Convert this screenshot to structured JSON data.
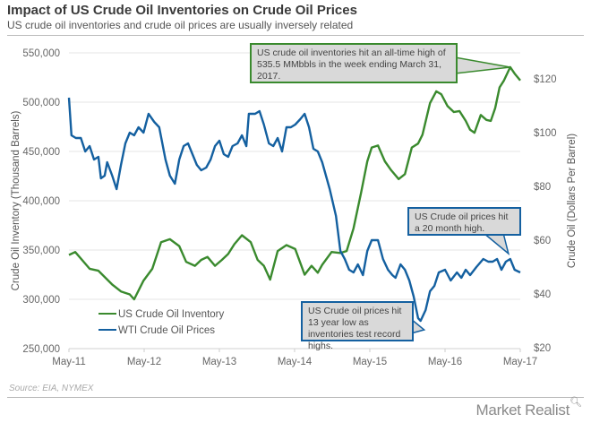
{
  "header": {
    "title": "Impact of US Crude Oil Inventories on Crude Oil Prices",
    "subtitle": "US crude oil inventories and crude oil prices are usually inversely related"
  },
  "footer": {
    "source": "Source: EIA, NYMEX",
    "brand": "Market Realist",
    "brand_icon": "magnifier-icon"
  },
  "colors": {
    "inventory": "#3a8a2e",
    "price": "#1460a0",
    "callout_bg": "#d9d9d9",
    "grid": "#e6e6e6"
  },
  "chart_data": {
    "type": "line",
    "title": "Impact of US Crude Oil Inventories on Crude Oil Prices",
    "subtitle": "US crude oil inventories and crude oil prices are usually inversely related",
    "xlabel": "",
    "x_ticks": [
      "May-11",
      "May-12",
      "May-13",
      "May-14",
      "May-15",
      "May-16",
      "May-17"
    ],
    "x_range_months": [
      0,
      72
    ],
    "y_left": {
      "label": "Crude Oil Inventory (Thousand  Barrels)",
      "range": [
        250000,
        550000
      ],
      "ticks": [
        "250,000",
        "300,000",
        "350,000",
        "400,000",
        "450,000",
        "500,000",
        "550,000"
      ]
    },
    "y_right": {
      "label": "Crude Oil (Dollars Per Barrel)",
      "range": [
        20,
        120
      ],
      "ticks": [
        "$20",
        "$40",
        "$60",
        "$80",
        "$100",
        "$120"
      ]
    },
    "grid": true,
    "legend": {
      "placement": "bottom-left",
      "entries": [
        "US Crude Oil Inventory",
        "WTI Crude Oil Prices"
      ]
    },
    "series": [
      {
        "name": "US Crude Oil Inventory",
        "axis": "left",
        "color": "#3a8a2e",
        "points": [
          [
            0,
            345000
          ],
          [
            1,
            348000
          ],
          [
            3.3,
            331000
          ],
          [
            4.7,
            329000
          ],
          [
            6.9,
            315000
          ],
          [
            8.3,
            308000
          ],
          [
            9.7,
            305000
          ],
          [
            10.4,
            300000
          ],
          [
            11.9,
            319000
          ],
          [
            13.3,
            331000
          ],
          [
            14.7,
            358000
          ],
          [
            16.1,
            361000
          ],
          [
            17.6,
            354000
          ],
          [
            18.7,
            338000
          ],
          [
            20.1,
            334000
          ],
          [
            21.1,
            340000
          ],
          [
            22.1,
            343000
          ],
          [
            23.3,
            334000
          ],
          [
            24.4,
            340000
          ],
          [
            25.4,
            346000
          ],
          [
            26.4,
            356000
          ],
          [
            27.6,
            365000
          ],
          [
            29,
            358000
          ],
          [
            30.1,
            340000
          ],
          [
            31.1,
            334000
          ],
          [
            32.1,
            320000
          ],
          [
            33.3,
            349000
          ],
          [
            34.7,
            355000
          ],
          [
            36.1,
            351000
          ],
          [
            37.6,
            325000
          ],
          [
            38.7,
            334000
          ],
          [
            39.7,
            327000
          ],
          [
            40.4,
            335000
          ],
          [
            41.9,
            348000
          ],
          [
            43.3,
            347000
          ],
          [
            44.3,
            349000
          ],
          [
            45.4,
            372000
          ],
          [
            46.6,
            408000
          ],
          [
            47.6,
            440000
          ],
          [
            48.3,
            454000
          ],
          [
            49.3,
            456000
          ],
          [
            50.4,
            440000
          ],
          [
            51.4,
            431000
          ],
          [
            52.6,
            422000
          ],
          [
            53.6,
            427000
          ],
          [
            54.7,
            454000
          ],
          [
            55.7,
            458000
          ],
          [
            56.4,
            467000
          ],
          [
            57.6,
            499000
          ],
          [
            58.6,
            511000
          ],
          [
            59.4,
            508000
          ],
          [
            60.4,
            496000
          ],
          [
            61.4,
            490000
          ],
          [
            62.3,
            491000
          ],
          [
            63.3,
            481000
          ],
          [
            64,
            472000
          ],
          [
            64.7,
            469000
          ],
          [
            65.7,
            487000
          ],
          [
            66.6,
            482000
          ],
          [
            67.3,
            481000
          ],
          [
            68,
            494000
          ],
          [
            68.7,
            515000
          ],
          [
            69.4,
            522000
          ],
          [
            70.4,
            535500
          ],
          [
            71.1,
            529000
          ],
          [
            72,
            522000
          ]
        ]
      },
      {
        "name": "WTI Crude Oil Prices",
        "axis": "right",
        "color": "#1460a0",
        "points": [
          [
            0,
            113
          ],
          [
            0.4,
            99
          ],
          [
            1.1,
            98
          ],
          [
            1.9,
            98
          ],
          [
            2.6,
            93
          ],
          [
            3.3,
            95
          ],
          [
            4,
            90
          ],
          [
            4.7,
            91
          ],
          [
            5.1,
            83
          ],
          [
            5.7,
            84
          ],
          [
            6.1,
            89
          ],
          [
            6.9,
            84
          ],
          [
            7.6,
            79
          ],
          [
            8.3,
            88
          ],
          [
            9,
            96
          ],
          [
            9.7,
            100
          ],
          [
            10.4,
            99
          ],
          [
            11.1,
            102
          ],
          [
            11.9,
            100
          ],
          [
            12.7,
            107
          ],
          [
            13.6,
            104
          ],
          [
            14.4,
            102
          ],
          [
            15.4,
            90
          ],
          [
            16.1,
            84
          ],
          [
            16.9,
            81
          ],
          [
            17.6,
            90
          ],
          [
            18.3,
            95
          ],
          [
            19,
            96
          ],
          [
            19.7,
            92
          ],
          [
            20.4,
            88
          ],
          [
            21.1,
            86
          ],
          [
            21.9,
            87
          ],
          [
            22.6,
            90
          ],
          [
            23.3,
            95
          ],
          [
            24,
            97
          ],
          [
            24.7,
            92
          ],
          [
            25.4,
            91
          ],
          [
            26.1,
            95
          ],
          [
            26.9,
            96
          ],
          [
            27.6,
            99
          ],
          [
            28.3,
            95
          ],
          [
            28.7,
            107
          ],
          [
            29.7,
            107
          ],
          [
            30.4,
            108
          ],
          [
            31.1,
            103
          ],
          [
            31.9,
            96
          ],
          [
            32.6,
            95
          ],
          [
            33.3,
            98
          ],
          [
            34,
            93
          ],
          [
            34.7,
            102
          ],
          [
            35.4,
            102
          ],
          [
            36.1,
            103
          ],
          [
            36.9,
            105
          ],
          [
            37.6,
            107
          ],
          [
            38.3,
            102
          ],
          [
            39,
            94
          ],
          [
            39.7,
            93
          ],
          [
            40.4,
            89
          ],
          [
            41.6,
            79
          ],
          [
            42.6,
            69
          ],
          [
            43.3,
            56
          ],
          [
            44,
            53
          ],
          [
            44.7,
            49
          ],
          [
            45.4,
            48
          ],
          [
            46.1,
            51
          ],
          [
            46.9,
            47
          ],
          [
            47.6,
            56
          ],
          [
            48.3,
            60
          ],
          [
            49.3,
            60
          ],
          [
            50.1,
            53
          ],
          [
            50.9,
            49
          ],
          [
            51.6,
            47
          ],
          [
            52.1,
            46
          ],
          [
            52.9,
            51
          ],
          [
            53.6,
            49
          ],
          [
            54.3,
            45
          ],
          [
            55,
            39
          ],
          [
            55.7,
            31
          ],
          [
            56.1,
            30
          ],
          [
            56.9,
            34
          ],
          [
            57.6,
            41
          ],
          [
            58.3,
            43
          ],
          [
            59,
            48
          ],
          [
            60,
            49
          ],
          [
            60.9,
            45
          ],
          [
            61.9,
            48
          ],
          [
            62.6,
            46
          ],
          [
            63.3,
            49
          ],
          [
            64,
            47
          ],
          [
            65,
            50
          ],
          [
            66.1,
            53
          ],
          [
            66.9,
            52
          ],
          [
            67.6,
            52
          ],
          [
            68.3,
            53
          ],
          [
            69,
            49
          ],
          [
            69.7,
            52
          ],
          [
            70.4,
            53
          ],
          [
            71.1,
            49
          ],
          [
            72,
            48
          ]
        ]
      }
    ],
    "annotations": [
      {
        "text": "US crude oil inventories hit an all-time high of 535.5 MMbbls in the week ending March 31, 2017.",
        "series": "US Crude Oil Inventory",
        "target": [
          70.4,
          535500
        ]
      },
      {
        "text": "US Crude oil prices hit a 20 month high.",
        "series": "WTI Crude Oil Prices",
        "target": [
          70.4,
          53
        ]
      },
      {
        "text": "US Crude oil prices hit 13 year low as inventories test record highs.",
        "series": "WTI Crude Oil Prices",
        "target": [
          56.1,
          30
        ]
      }
    ]
  }
}
